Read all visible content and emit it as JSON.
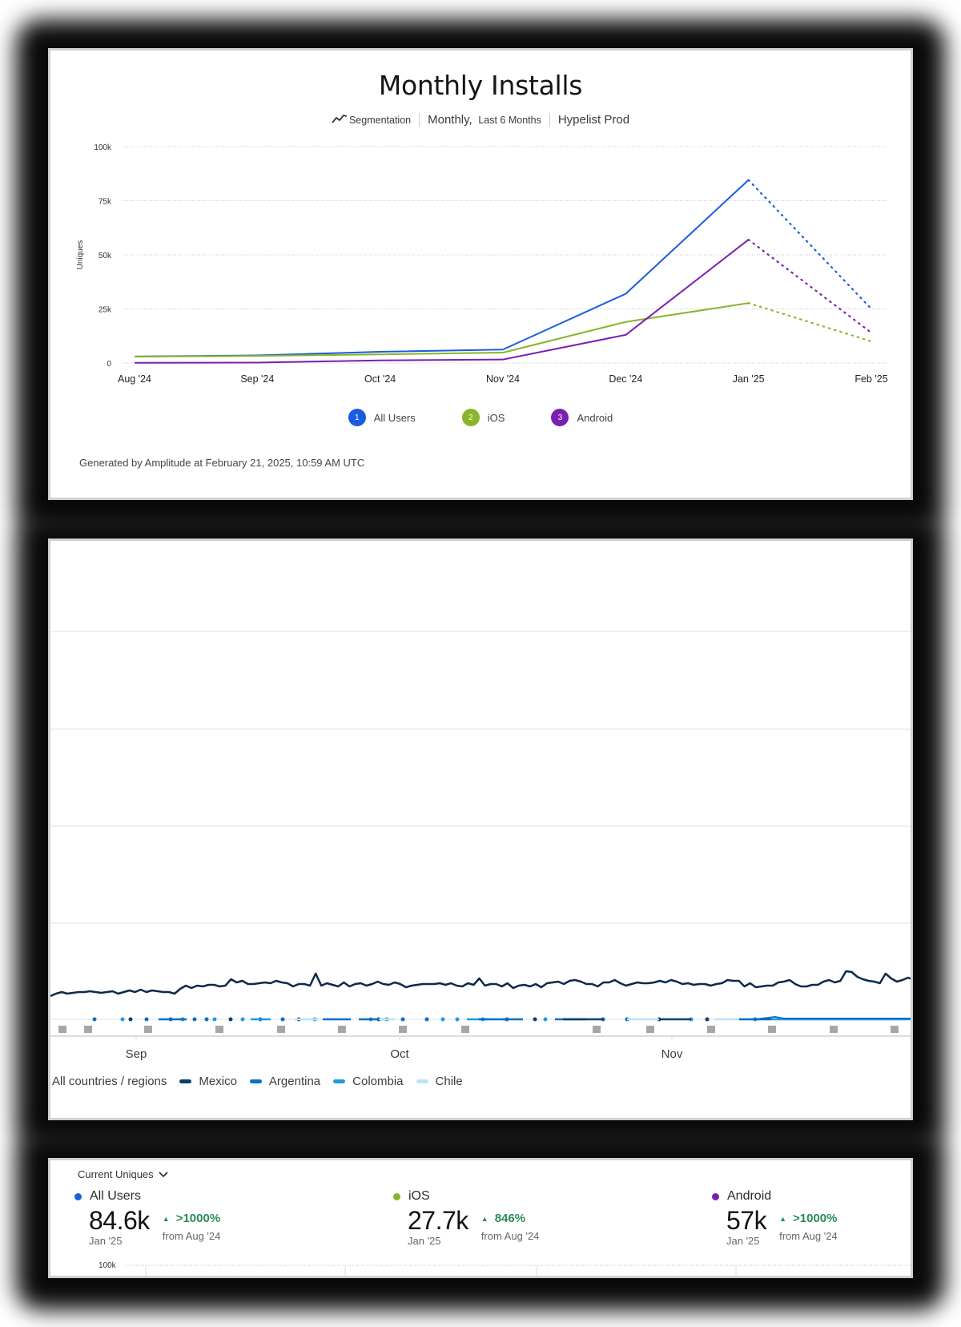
{
  "card1": {
    "title": "Monthly Installs",
    "meta": {
      "chart_type_icon": "line-chart-icon",
      "chart_type": "Segmentation",
      "interval": "Monthly,",
      "range": "Last 6 Months",
      "project": "Hypelist Prod"
    },
    "y_axis_title": "Uniques",
    "legend": [
      {
        "num": "1",
        "label": "All Users",
        "color": "#1a5ce0"
      },
      {
        "num": "2",
        "label": "iOS",
        "color": "#8ab42c"
      },
      {
        "num": "3",
        "label": "Android",
        "color": "#7a1fb0"
      }
    ],
    "footer": "Generated by Amplitude at February 21, 2025, 10:59 AM UTC"
  },
  "card2": {
    "legend": [
      {
        "label": "All countries / regions",
        "color": null
      },
      {
        "label": "Mexico",
        "color": "#0d3f6e"
      },
      {
        "label": "Argentina",
        "color": "#0b6ec4"
      },
      {
        "label": "Colombia",
        "color": "#1e9be6"
      },
      {
        "label": "Chile",
        "color": "#bfe2f7"
      }
    ],
    "x_ticks": [
      "Sep",
      "Oct",
      "Nov"
    ]
  },
  "card3": {
    "metric_select": "Current Uniques",
    "metrics": [
      {
        "name": "All Users",
        "color": "#1a5ce0",
        "value": "84.6k",
        "period": "Jan '25",
        "change": ">1000%",
        "change_from": "from Aug '24"
      },
      {
        "name": "iOS",
        "color": "#8ab42c",
        "value": "27.7k",
        "period": "Jan '25",
        "change": "846%",
        "change_from": "from Aug '24"
      },
      {
        "name": "Android",
        "color": "#7a1fb0",
        "value": "57k",
        "period": "Jan '25",
        "change": ">1000%",
        "change_from": "from Aug '24"
      }
    ],
    "axis_top_label": "100k"
  },
  "chart_data": [
    {
      "type": "line",
      "title": "Monthly Installs",
      "subtitle": "Segmentation | Monthly, Last 6 Months | Hypelist Prod",
      "xlabel": "",
      "ylabel": "Uniques",
      "x": [
        "Aug '24",
        "Sep '24",
        "Oct '24",
        "Nov '24",
        "Dec '24",
        "Jan '25",
        "Feb '25"
      ],
      "y_ticks": [
        "0",
        "25k",
        "50k",
        "75k",
        "100k"
      ],
      "ylim": [
        0,
        100000
      ],
      "grid": true,
      "legend_position": "bottom",
      "incomplete_last_period": true,
      "series": [
        {
          "name": "All Users",
          "color": "#1a5ce0",
          "values": [
            3000,
            3500,
            5200,
            6200,
            32000,
            84600,
            25000
          ]
        },
        {
          "name": "iOS",
          "color": "#8ab42c",
          "values": [
            2900,
            3300,
            4000,
            4800,
            19000,
            27700,
            10000
          ]
        },
        {
          "name": "Android",
          "color": "#7a1fb0",
          "values": [
            100,
            200,
            1200,
            1600,
            13000,
            57000,
            14000
          ]
        }
      ]
    },
    {
      "type": "line",
      "title": "",
      "xlabel": "",
      "ylabel": "",
      "x_ticks": [
        "Sep",
        "Oct",
        "Nov"
      ],
      "grid": true,
      "legend_position": "bottom",
      "legend": [
        "All countries / regions",
        "Mexico",
        "Argentina",
        "Colombia",
        "Chile"
      ],
      "series": [
        {
          "name": "Mexico",
          "color": "#0d3f6e",
          "note": "daily values, low relative to axis; spike near late Nov"
        },
        {
          "name": "Argentina",
          "color": "#0b6ec4",
          "note": "near zero, sparse"
        },
        {
          "name": "Colombia",
          "color": "#1e9be6",
          "note": "near zero, sparse"
        },
        {
          "name": "Chile",
          "color": "#bfe2f7",
          "note": "near zero, sparse"
        }
      ]
    },
    {
      "type": "table",
      "title": "Current Uniques",
      "rows": [
        {
          "series": "All Users",
          "value": "84.6k",
          "period": "Jan '25",
          "change": ">1000%",
          "from": "Aug '24"
        },
        {
          "series": "iOS",
          "value": "27.7k",
          "period": "Jan '25",
          "change": "846%",
          "from": "Aug '24"
        },
        {
          "series": "Android",
          "value": "57k",
          "period": "Jan '25",
          "change": ">1000%",
          "from": "Aug '24"
        }
      ]
    }
  ]
}
